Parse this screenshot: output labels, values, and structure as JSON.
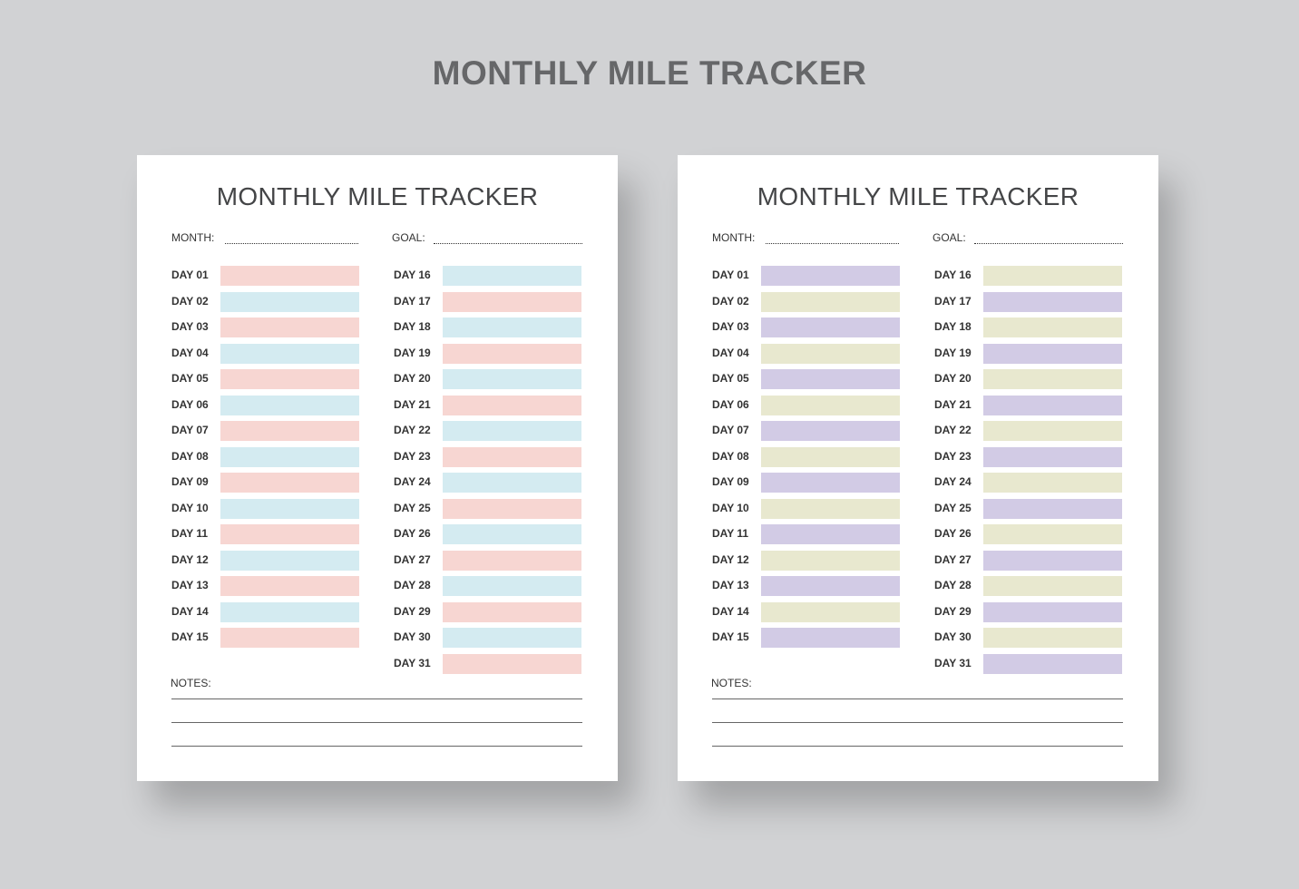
{
  "heading": "MONTHLY MILE TRACKER",
  "sheets": [
    {
      "title": "MONTHLY MILE TRACKER",
      "month_label": "MONTH:",
      "goal_label": "GOAL:",
      "notes_label": "NOTES:",
      "colors": [
        "#f7d6d2",
        "#d4ebf1"
      ]
    },
    {
      "title": "MONTHLY MILE TRACKER",
      "month_label": "MONTH:",
      "goal_label": "GOAL:",
      "notes_label": "NOTES:",
      "colors": [
        "#d2cbe5",
        "#e8e8cf"
      ]
    }
  ],
  "days": [
    "DAY 01",
    "DAY 02",
    "DAY 03",
    "DAY 04",
    "DAY 05",
    "DAY 06",
    "DAY 07",
    "DAY 08",
    "DAY 09",
    "DAY 10",
    "DAY 11",
    "DAY 12",
    "DAY 13",
    "DAY 14",
    "DAY 15",
    "DAY 16",
    "DAY 17",
    "DAY 18",
    "DAY 19",
    "DAY 20",
    "DAY 21",
    "DAY 22",
    "DAY 23",
    "DAY 24",
    "DAY 25",
    "DAY 26",
    "DAY 27",
    "DAY 28",
    "DAY 29",
    "DAY 30",
    "DAY 31"
  ]
}
